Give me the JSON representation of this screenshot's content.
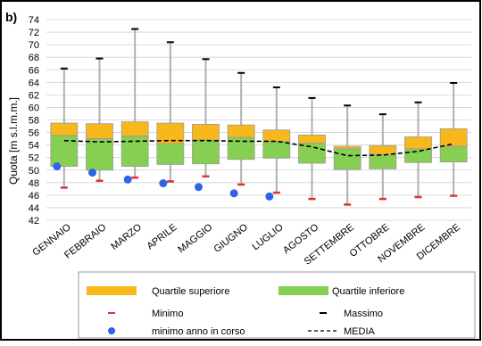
{
  "panel_label": "b)",
  "chart_data": {
    "type": "box",
    "ylabel": "Quota [m s.l.m.m.]",
    "ylim": [
      42,
      74
    ],
    "yticks": [
      42,
      44,
      46,
      48,
      50,
      52,
      54,
      56,
      58,
      60,
      62,
      64,
      66,
      68,
      70,
      72,
      74
    ],
    "grid": true,
    "categories": [
      "GENNAIO",
      "FEBBRAIO",
      "MARZO",
      "APRILE",
      "MAGGIO",
      "GIUGNO",
      "LUGLIO",
      "AGOSTO",
      "SETTEMBRE",
      "OTTOBRE",
      "NOVEMBRE",
      "DICEMBRE"
    ],
    "massimo": [
      66.2,
      67.8,
      72.5,
      70.4,
      67.7,
      65.5,
      63.2,
      61.5,
      60.3,
      58.9,
      60.8,
      63.9
    ],
    "q3": [
      57.5,
      57.4,
      57.7,
      57.5,
      57.3,
      57.2,
      56.4,
      55.6,
      53.8,
      53.9,
      55.3,
      56.6
    ],
    "median": [
      55.5,
      55.0,
      55.4,
      54.2,
      54.8,
      55.2,
      54.6,
      54.3,
      53.4,
      52.5,
      53.4,
      53.8
    ],
    "q1": [
      50.6,
      50.0,
      50.6,
      50.9,
      51.0,
      51.7,
      51.9,
      51.1,
      50.1,
      50.2,
      51.2,
      51.3
    ],
    "minimo": [
      47.2,
      48.3,
      48.8,
      48.2,
      49.0,
      47.7,
      46.4,
      45.4,
      44.5,
      45.4,
      45.7,
      45.9
    ],
    "minimo_anno_in_corso": [
      50.6,
      49.6,
      48.5,
      47.9,
      47.3,
      46.3,
      45.8,
      null,
      null,
      null,
      null,
      null
    ],
    "media": [
      54.7,
      54.5,
      54.6,
      54.7,
      54.7,
      54.6,
      54.6,
      53.7,
      52.3,
      52.4,
      53.0,
      54.2
    ],
    "legend": {
      "placement": "bottom",
      "quartile_upper": "Quartile superiore",
      "quartile_lower": "Quartile inferiore",
      "minimum": "Minimo",
      "maximum": "Massimo",
      "current_min": "minimo anno in corso",
      "mean": "MEDIA"
    },
    "colors": {
      "upper": "#f8b81c",
      "lower": "#86cf53",
      "minimum": "#e03030",
      "current_min": "#2f64e8",
      "whisker": "#b0b0b0",
      "mean": "#000000"
    }
  }
}
